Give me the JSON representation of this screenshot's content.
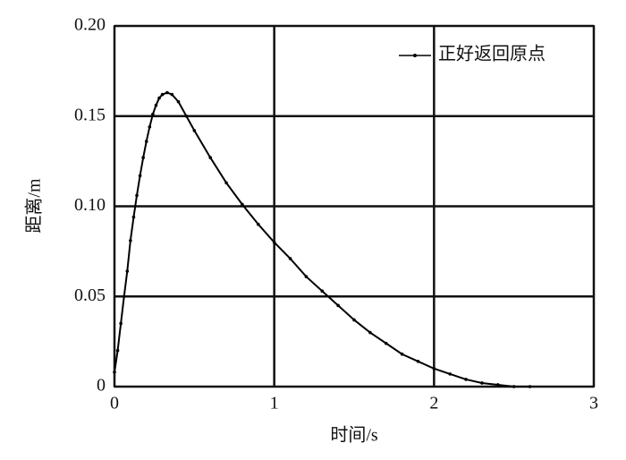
{
  "chart_data": {
    "type": "line",
    "xlabel": "时间/s",
    "ylabel": "距离/m",
    "x": [
      0,
      0.02,
      0.04,
      0.06,
      0.08,
      0.1,
      0.12,
      0.14,
      0.16,
      0.18,
      0.2,
      0.22,
      0.24,
      0.26,
      0.28,
      0.3,
      0.33,
      0.36,
      0.4,
      0.45,
      0.5,
      0.6,
      0.7,
      0.8,
      0.9,
      1.0,
      1.1,
      1.2,
      1.3,
      1.4,
      1.5,
      1.6,
      1.7,
      1.8,
      1.9,
      2.0,
      2.1,
      2.2,
      2.3,
      2.4,
      2.5,
      2.6
    ],
    "series": [
      {
        "name": "正好返回原点",
        "color": "#000000",
        "values": [
          0.008,
          0.02,
          0.035,
          0.05,
          0.064,
          0.081,
          0.094,
          0.106,
          0.117,
          0.127,
          0.136,
          0.144,
          0.151,
          0.156,
          0.16,
          0.162,
          0.163,
          0.162,
          0.158,
          0.15,
          0.142,
          0.127,
          0.113,
          0.101,
          0.09,
          0.08,
          0.071,
          0.061,
          0.053,
          0.045,
          0.037,
          0.03,
          0.024,
          0.018,
          0.014,
          0.01,
          0.007,
          0.004,
          0.002,
          0.001,
          0.0,
          0.0
        ]
      }
    ],
    "xlim": [
      0,
      3
    ],
    "xticks": [
      0,
      1,
      2,
      3
    ],
    "ylim": [
      0,
      0.2
    ],
    "yticks": [
      0,
      0.05,
      {
        "value": 0.1,
        "label": "0.10"
      },
      0.15,
      {
        "value": 0.2,
        "label": "0.20"
      }
    ],
    "grid": true,
    "legend": "upper right"
  }
}
